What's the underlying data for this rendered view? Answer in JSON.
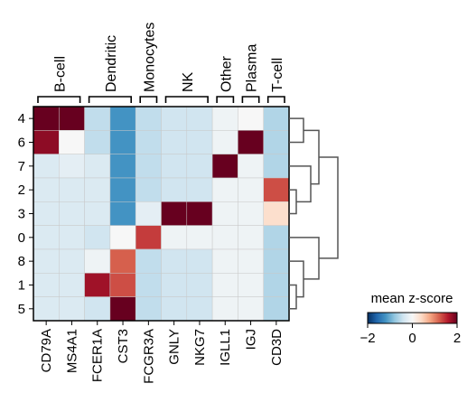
{
  "chart_data": {
    "type": "heatmap",
    "rows": [
      "4",
      "6",
      "7",
      "2",
      "3",
      "0",
      "8",
      "1",
      "5"
    ],
    "columns": [
      "CD79A",
      "MS4A1",
      "FCER1A",
      "CST3",
      "FCGR3A",
      "GNLY",
      "NKG7",
      "IGLL1",
      "IGJ",
      "CD3D"
    ],
    "groups": [
      {
        "label": "B-cell",
        "start": 0,
        "end": 1
      },
      {
        "label": "Dendritic",
        "start": 2,
        "end": 3
      },
      {
        "label": "Monocytes",
        "start": 4,
        "end": 4
      },
      {
        "label": "NK",
        "start": 5,
        "end": 6
      },
      {
        "label": "Other",
        "start": 7,
        "end": 7
      },
      {
        "label": "Plasma",
        "start": 8,
        "end": 8
      },
      {
        "label": "T-cell",
        "start": 9,
        "end": 9
      }
    ],
    "values": [
      [
        2.0,
        2.0,
        -0.5,
        -1.2,
        -0.5,
        -0.4,
        -0.4,
        -0.1,
        0.0,
        -0.6
      ],
      [
        1.8,
        0.0,
        -0.5,
        -1.2,
        -0.5,
        -0.4,
        -0.4,
        -0.1,
        2.0,
        -0.6
      ],
      [
        -0.3,
        -0.2,
        -0.3,
        -1.2,
        -0.5,
        -0.4,
        -0.4,
        2.0,
        -0.1,
        -0.6
      ],
      [
        -0.3,
        -0.3,
        -0.3,
        -1.2,
        -0.5,
        -0.4,
        -0.4,
        -0.1,
        -0.1,
        1.3
      ],
      [
        -0.3,
        -0.3,
        -0.3,
        -1.2,
        -0.2,
        2.0,
        2.0,
        -0.1,
        -0.1,
        0.35
      ],
      [
        -0.3,
        -0.3,
        -0.4,
        0.0,
        1.4,
        -0.1,
        -0.1,
        -0.1,
        -0.1,
        -0.6
      ],
      [
        -0.3,
        -0.3,
        -0.1,
        1.2,
        -0.5,
        -0.4,
        -0.4,
        -0.1,
        -0.1,
        -0.6
      ],
      [
        -0.3,
        -0.3,
        1.7,
        1.3,
        -0.5,
        -0.4,
        -0.4,
        -0.1,
        -0.1,
        -0.6
      ],
      [
        -0.3,
        -0.3,
        -0.4,
        2.0,
        -0.5,
        -0.4,
        -0.4,
        -0.1,
        -0.1,
        -0.6
      ]
    ],
    "colormap": "RdBu_r",
    "vmin": -2,
    "vmax": 2,
    "colorbar": {
      "title": "mean z-score",
      "ticks": [
        "−2",
        "0",
        "2"
      ]
    },
    "dendrogram_side": "right"
  }
}
